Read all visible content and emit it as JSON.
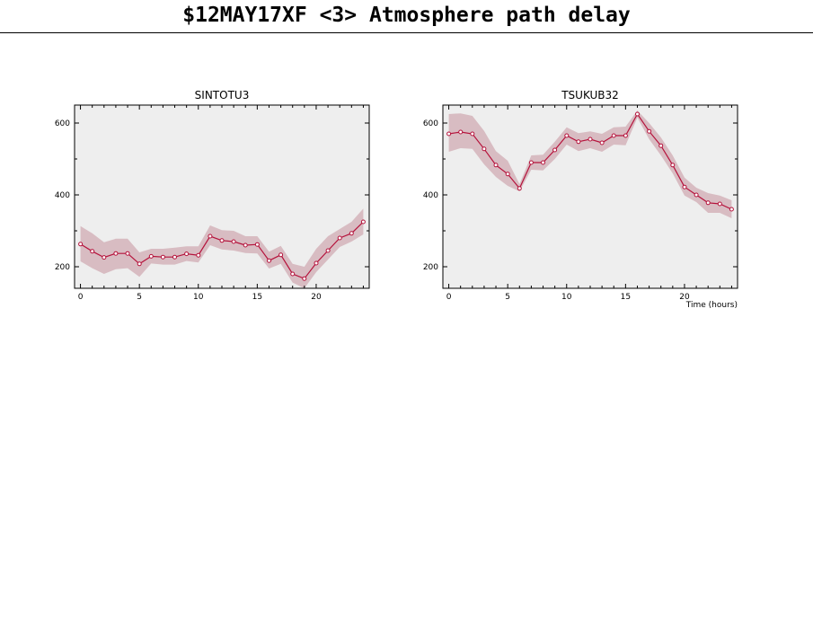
{
  "page": {
    "title": "$12MAY17XF <3>  Atmosphere path delay"
  },
  "colors": {
    "panel_bg": "#eeeeee",
    "line": "#b5123b",
    "band": "#d8bcc2",
    "axis": "#000000"
  },
  "chart_data": [
    {
      "type": "line",
      "title": "SINTOTU3",
      "xlabel": "",
      "ylabel": "",
      "xlim": [
        -0.5,
        24.5
      ],
      "ylim": [
        140,
        650
      ],
      "x_ticks": [
        0,
        5,
        10,
        15,
        20
      ],
      "y_ticks": [
        200,
        400,
        600
      ],
      "series": [
        {
          "x": [
            0,
            1,
            2,
            3,
            4,
            5,
            6,
            7,
            8,
            9,
            10,
            11,
            12,
            13,
            14,
            15,
            16,
            17,
            18,
            19,
            20,
            21,
            22,
            23,
            24
          ],
          "values": [
            263,
            243,
            226,
            237,
            237,
            208,
            229,
            227,
            227,
            236,
            232,
            285,
            273,
            270,
            260,
            262,
            217,
            233,
            180,
            167,
            210,
            245,
            280,
            293,
            325
          ],
          "band_upper": [
            313,
            293,
            268,
            278,
            278,
            240,
            250,
            250,
            253,
            257,
            257,
            315,
            302,
            300,
            285,
            285,
            242,
            258,
            208,
            200,
            250,
            285,
            305,
            325,
            362
          ],
          "band_lower": [
            215,
            196,
            180,
            193,
            196,
            172,
            209,
            206,
            206,
            216,
            212,
            260,
            248,
            245,
            238,
            237,
            195,
            208,
            156,
            140,
            185,
            220,
            255,
            270,
            290
          ]
        }
      ],
      "grid": false,
      "legend": "none"
    },
    {
      "type": "line",
      "title": "TSUKUB32",
      "xlabel": "Time (hours)",
      "ylabel": "",
      "xlim": [
        -0.5,
        24.5
      ],
      "ylim": [
        140,
        650
      ],
      "x_ticks": [
        0,
        5,
        10,
        15,
        20
      ],
      "y_ticks": [
        200,
        400,
        600
      ],
      "series": [
        {
          "x": [
            0,
            1,
            2,
            3,
            4,
            5,
            6,
            7,
            8,
            9,
            10,
            11,
            12,
            13,
            14,
            15,
            16,
            17,
            18,
            19,
            20,
            21,
            22,
            23,
            24
          ],
          "values": [
            570,
            575,
            570,
            528,
            483,
            458,
            418,
            490,
            490,
            525,
            565,
            548,
            555,
            545,
            565,
            565,
            625,
            577,
            537,
            483,
            422,
            400,
            378,
            375,
            360
          ],
          "band_upper": [
            625,
            627,
            620,
            578,
            522,
            495,
            430,
            510,
            512,
            548,
            588,
            572,
            577,
            570,
            588,
            590,
            635,
            600,
            560,
            510,
            448,
            420,
            405,
            398,
            385
          ],
          "band_lower": [
            520,
            530,
            528,
            485,
            450,
            425,
            410,
            470,
            468,
            500,
            540,
            522,
            530,
            520,
            540,
            538,
            615,
            555,
            510,
            460,
            398,
            380,
            350,
            350,
            335
          ]
        }
      ],
      "grid": false,
      "legend": "none"
    }
  ]
}
